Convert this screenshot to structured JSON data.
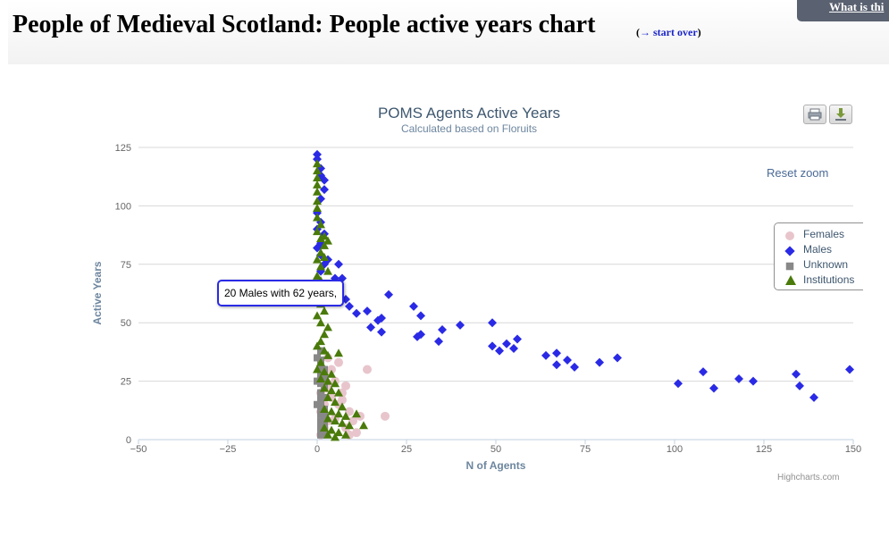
{
  "page": {
    "title": "People of Medieval Scotland: People active years chart",
    "start_over_prefix": "(",
    "start_over_link": "→ start over",
    "start_over_suffix": ")",
    "help_link": "What is thi"
  },
  "chart_controls": {
    "reset_zoom": "Reset zoom",
    "print_icon": "printer-icon",
    "export_icon": "download-icon",
    "credits": "Highcharts.com"
  },
  "tooltip": {
    "text": "20 Males with 62 years,"
  },
  "colors": {
    "Females": "#e8c5cc",
    "Males": "#2a2ae6",
    "Unknown": "#888888",
    "Institutions": "#4a7a0a"
  },
  "chart_data": {
    "type": "scatter",
    "title": "POMS Agents Active Years",
    "subtitle": "Calculated based on Floruits",
    "xlabel": "N of Agents",
    "ylabel": "Active Years",
    "xlim": [
      -50,
      150
    ],
    "ylim": [
      0,
      125
    ],
    "xticks": [
      -50,
      -25,
      0,
      25,
      50,
      75,
      100,
      125,
      150
    ],
    "yticks": [
      0,
      25,
      50,
      75,
      100,
      125
    ],
    "grid": "horizontal",
    "legend_position": "right",
    "series": [
      {
        "name": "Females",
        "marker": "circle",
        "points": [
          [
            1,
            2
          ],
          [
            2,
            5
          ],
          [
            3,
            8
          ],
          [
            1,
            12
          ],
          [
            2,
            15
          ],
          [
            4,
            18
          ],
          [
            3,
            22
          ],
          [
            5,
            25
          ],
          [
            6,
            33
          ],
          [
            7,
            20
          ],
          [
            8,
            23
          ],
          [
            7,
            17
          ],
          [
            9,
            12
          ],
          [
            10,
            8
          ],
          [
            11,
            3
          ],
          [
            12,
            10
          ],
          [
            14,
            30
          ],
          [
            19,
            10
          ],
          [
            2,
            28
          ],
          [
            3,
            35
          ],
          [
            4,
            30
          ],
          [
            1,
            20
          ],
          [
            6,
            15
          ],
          [
            5,
            9
          ],
          [
            8,
            5
          ],
          [
            9,
            2
          ]
        ]
      },
      {
        "name": "Males",
        "marker": "diamond",
        "points": [
          [
            0,
            122
          ],
          [
            0,
            120
          ],
          [
            1,
            116
          ],
          [
            1,
            113
          ],
          [
            2,
            111
          ],
          [
            2,
            107
          ],
          [
            1,
            103
          ],
          [
            0,
            97
          ],
          [
            1,
            93
          ],
          [
            0,
            90
          ],
          [
            2,
            88
          ],
          [
            1,
            84
          ],
          [
            0,
            82
          ],
          [
            1,
            79
          ],
          [
            3,
            77
          ],
          [
            2,
            75
          ],
          [
            6,
            75
          ],
          [
            1,
            72
          ],
          [
            5,
            69
          ],
          [
            7,
            69
          ],
          [
            3,
            66
          ],
          [
            6,
            62
          ],
          [
            8,
            60
          ],
          [
            20,
            62
          ],
          [
            9,
            57
          ],
          [
            11,
            54
          ],
          [
            14,
            55
          ],
          [
            15,
            48
          ],
          [
            17,
            51
          ],
          [
            18,
            52
          ],
          [
            18,
            46
          ],
          [
            27,
            57
          ],
          [
            28,
            44
          ],
          [
            29,
            53
          ],
          [
            29,
            45
          ],
          [
            34,
            42
          ],
          [
            35,
            47
          ],
          [
            40,
            49
          ],
          [
            49,
            50
          ],
          [
            49,
            40
          ],
          [
            51,
            38
          ],
          [
            53,
            41
          ],
          [
            55,
            39
          ],
          [
            56,
            43
          ],
          [
            64,
            36
          ],
          [
            67,
            37
          ],
          [
            67,
            32
          ],
          [
            70,
            34
          ],
          [
            72,
            31
          ],
          [
            79,
            33
          ],
          [
            84,
            35
          ],
          [
            101,
            24
          ],
          [
            108,
            29
          ],
          [
            111,
            22
          ],
          [
            118,
            26
          ],
          [
            122,
            25
          ],
          [
            134,
            28
          ],
          [
            135,
            23
          ],
          [
            139,
            18
          ],
          [
            149,
            30
          ]
        ]
      },
      {
        "name": "Unknown",
        "marker": "square",
        "points": [
          [
            1,
            2
          ],
          [
            1,
            5
          ],
          [
            1,
            8
          ],
          [
            1,
            11
          ],
          [
            1,
            14
          ],
          [
            1,
            17
          ],
          [
            1,
            20
          ],
          [
            1,
            24
          ],
          [
            1,
            27
          ],
          [
            1,
            30
          ],
          [
            1,
            34
          ],
          [
            1,
            38
          ],
          [
            2,
            3
          ],
          [
            2,
            6
          ],
          [
            2,
            10
          ],
          [
            2,
            13
          ],
          [
            2,
            18
          ],
          [
            2,
            22
          ],
          [
            2,
            26
          ],
          [
            2,
            30
          ],
          [
            0,
            15
          ],
          [
            0,
            25
          ],
          [
            0,
            35
          ]
        ]
      },
      {
        "name": "Institutions",
        "marker": "triangle",
        "points": [
          [
            0,
            118
          ],
          [
            0,
            115
          ],
          [
            0,
            112
          ],
          [
            0,
            109
          ],
          [
            0,
            106
          ],
          [
            0,
            102
          ],
          [
            0,
            99
          ],
          [
            0,
            95
          ],
          [
            1,
            92
          ],
          [
            0,
            89
          ],
          [
            1,
            86
          ],
          [
            2,
            87
          ],
          [
            2,
            83
          ],
          [
            3,
            85
          ],
          [
            1,
            80
          ],
          [
            0,
            77
          ],
          [
            2,
            78
          ],
          [
            1,
            74
          ],
          [
            3,
            72
          ],
          [
            0,
            70
          ],
          [
            1,
            68
          ],
          [
            2,
            65
          ],
          [
            4,
            63
          ],
          [
            3,
            60
          ],
          [
            1,
            58
          ],
          [
            2,
            55
          ],
          [
            0,
            53
          ],
          [
            1,
            50
          ],
          [
            3,
            48
          ],
          [
            2,
            45
          ],
          [
            1,
            42
          ],
          [
            0,
            40
          ],
          [
            2,
            38
          ],
          [
            3,
            36
          ],
          [
            1,
            33
          ],
          [
            0,
            30
          ],
          [
            2,
            29
          ],
          [
            4,
            28
          ],
          [
            1,
            26
          ],
          [
            3,
            25
          ],
          [
            5,
            24
          ],
          [
            6,
            37
          ],
          [
            2,
            22
          ],
          [
            4,
            21
          ],
          [
            6,
            20
          ],
          [
            3,
            18
          ],
          [
            5,
            16
          ],
          [
            7,
            14
          ],
          [
            2,
            13
          ],
          [
            4,
            12
          ],
          [
            6,
            11
          ],
          [
            8,
            10
          ],
          [
            11,
            11
          ],
          [
            3,
            9
          ],
          [
            5,
            8
          ],
          [
            7,
            7
          ],
          [
            9,
            6
          ],
          [
            13,
            6
          ],
          [
            2,
            5
          ],
          [
            4,
            4
          ],
          [
            6,
            3
          ],
          [
            8,
            2
          ],
          [
            3,
            2
          ],
          [
            5,
            1
          ]
        ]
      }
    ]
  }
}
